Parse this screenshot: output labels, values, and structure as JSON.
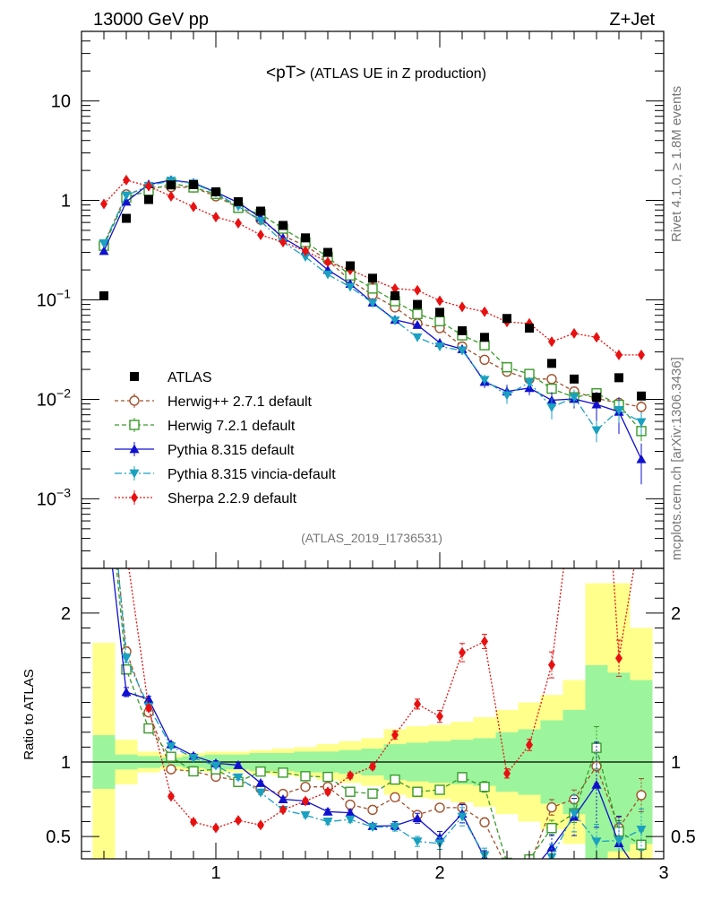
{
  "header": {
    "energy_label": "13000 GeV pp",
    "process_label": "Z+Jet",
    "plot_title_main": "<pT>",
    "plot_title_sub": "(ATLAS UE in Z production)",
    "analysis_id": "(ATLAS_2019_I1736531)",
    "side_rivet": "Rivet 4.1.0, ≥ 1.8M events",
    "side_mcplots": "mcplots.cern.ch [arXiv:1306.3436]"
  },
  "chart_data": {
    "type": "scatter",
    "main": {
      "yscale": "log",
      "xlim": [
        0.4,
        3.0
      ],
      "ylim": [
        0.0002,
        50
      ],
      "ytick_labels": [
        {
          "value": 10,
          "label": "10"
        },
        {
          "value": 1,
          "label": "1"
        },
        {
          "value": 0.1,
          "base": "10",
          "exp": "−1"
        },
        {
          "value": 0.01,
          "base": "10",
          "exp": "−2"
        },
        {
          "value": 0.001,
          "base": "10",
          "exp": "−3"
        }
      ]
    },
    "ratio": {
      "ylabel": "Ratio to ATLAS",
      "ylim": [
        0.35,
        2.3
      ],
      "ytick_labels": [
        "0.5",
        "1",
        "2"
      ],
      "yticks": [
        0.5,
        1,
        2
      ]
    },
    "xticks": [
      1,
      2,
      3
    ],
    "xtick_labels": [
      "1",
      "2",
      "3"
    ],
    "x": [
      0.5,
      0.6,
      0.7,
      0.8,
      0.9,
      1.0,
      1.1,
      1.2,
      1.3,
      1.4,
      1.5,
      1.6,
      1.7,
      1.8,
      1.9,
      2.0,
      2.1,
      2.2,
      2.3,
      2.4,
      2.5,
      2.6,
      2.7,
      2.8,
      2.9
    ],
    "data": {
      "name": "ATLAS",
      "values": [
        0.11,
        0.66,
        1.02,
        1.43,
        1.44,
        1.22,
        0.97,
        0.78,
        0.56,
        0.42,
        0.3,
        0.22,
        0.165,
        0.11,
        0.09,
        0.075,
        0.049,
        0.042,
        0.065,
        0.052,
        0.023,
        0.016,
        0.0105,
        0.0165,
        0.0108
      ],
      "band_inner": [
        0.18,
        0.05,
        0.04,
        0.03,
        0.04,
        0.05,
        0.05,
        0.06,
        0.06,
        0.07,
        0.07,
        0.08,
        0.09,
        0.12,
        0.13,
        0.14,
        0.15,
        0.16,
        0.2,
        0.22,
        0.28,
        0.35,
        0.65,
        0.6,
        0.55
      ],
      "band_outer": [
        0.8,
        0.15,
        0.07,
        0.05,
        0.06,
        0.07,
        0.07,
        0.08,
        0.09,
        0.1,
        0.12,
        0.14,
        0.16,
        0.22,
        0.24,
        0.25,
        0.27,
        0.3,
        0.35,
        0.4,
        0.45,
        0.55,
        1.2,
        1.2,
        0.9
      ]
    },
    "series": [
      {
        "name": "Herwig++ 2.7.1 default",
        "color": "#a0522d",
        "marker": "open-circle",
        "dash": "4,3",
        "values": [
          0.36,
          1.15,
          1.36,
          1.36,
          1.35,
          1.1,
          0.85,
          0.64,
          0.44,
          0.35,
          0.25,
          0.157,
          0.112,
          0.084,
          0.058,
          0.052,
          0.034,
          0.025,
          0.019,
          0.016,
          0.016,
          0.012,
          0.0102,
          0.0092,
          0.0084
        ],
        "errors": [
          0.01,
          0.02,
          0.02,
          0.02,
          0.02,
          0.02,
          0.015,
          0.01,
          0.008,
          0.006,
          0.005,
          0.004,
          0.003,
          0.003,
          0.002,
          0.002,
          0.0015,
          0.0012,
          0.0012,
          0.001,
          0.0012,
          0.001,
          0.0012,
          0.0012,
          0.0012
        ]
      },
      {
        "name": "Herwig 7.2.1 default",
        "color": "#3a9a2a",
        "marker": "open-square",
        "dash": "5,3",
        "values": [
          0.35,
          1.07,
          1.25,
          1.48,
          1.35,
          1.16,
          0.84,
          0.73,
          0.52,
          0.38,
          0.27,
          0.176,
          0.13,
          0.097,
          0.072,
          0.061,
          0.044,
          0.035,
          0.021,
          0.018,
          0.0128,
          0.0105,
          0.0115,
          0.0088,
          0.0048
        ],
        "errors": [
          0.01,
          0.02,
          0.02,
          0.02,
          0.02,
          0.02,
          0.015,
          0.01,
          0.008,
          0.006,
          0.005,
          0.004,
          0.003,
          0.003,
          0.002,
          0.002,
          0.0015,
          0.0015,
          0.0012,
          0.001,
          0.0012,
          0.001,
          0.0015,
          0.0012,
          0.001
        ]
      },
      {
        "name": "Pythia 8.315 default",
        "color": "#1010d0",
        "marker": "triangle-up",
        "dash": "",
        "values": [
          0.31,
          0.97,
          1.45,
          1.6,
          1.5,
          1.21,
          0.95,
          0.67,
          0.42,
          0.31,
          0.2,
          0.145,
          0.094,
          0.063,
          0.056,
          0.037,
          0.032,
          0.015,
          0.012,
          0.013,
          0.0098,
          0.0101,
          0.0089,
          0.0075,
          0.0025
        ],
        "errors": [
          0.01,
          0.02,
          0.02,
          0.02,
          0.02,
          0.02,
          0.015,
          0.01,
          0.008,
          0.006,
          0.005,
          0.004,
          0.003,
          0.003,
          0.003,
          0.003,
          0.003,
          0.002,
          0.002,
          0.002,
          0.002,
          0.002,
          0.003,
          0.003,
          0.0011
        ]
      },
      {
        "name": "Pythia 8.315 vincia-default",
        "color": "#1aa0c0",
        "marker": "triangle-down",
        "dash": "8,3,2,3",
        "values": [
          0.37,
          1.12,
          1.4,
          1.58,
          1.48,
          1.19,
          0.87,
          0.62,
          0.38,
          0.27,
          0.18,
          0.135,
          0.093,
          0.062,
          0.042,
          0.034,
          0.031,
          0.0157,
          0.011,
          0.0148,
          0.0083,
          0.0105,
          0.0049,
          0.0078,
          0.0059
        ],
        "errors": [
          0.01,
          0.02,
          0.02,
          0.02,
          0.02,
          0.02,
          0.015,
          0.01,
          0.008,
          0.006,
          0.005,
          0.004,
          0.003,
          0.003,
          0.003,
          0.003,
          0.003,
          0.002,
          0.002,
          0.002,
          0.002,
          0.002,
          0.0012,
          0.002,
          0.0015
        ]
      },
      {
        "name": "Sherpa 2.2.9 default",
        "color": "#e81010",
        "marker": "diamond",
        "dash": "2,2",
        "values": [
          0.92,
          1.6,
          1.39,
          1.1,
          0.86,
          0.68,
          0.59,
          0.45,
          0.38,
          0.31,
          0.24,
          0.2,
          0.16,
          0.13,
          0.125,
          0.098,
          0.085,
          0.076,
          0.06,
          0.058,
          0.038,
          0.046,
          0.042,
          0.028,
          0.028
        ],
        "errors": [
          0.01,
          0.02,
          0.02,
          0.02,
          0.02,
          0.015,
          0.012,
          0.01,
          0.008,
          0.006,
          0.005,
          0.004,
          0.003,
          0.003,
          0.003,
          0.003,
          0.003,
          0.002,
          0.002,
          0.002,
          0.002,
          0.002,
          0.002,
          0.002,
          0.002
        ]
      }
    ]
  }
}
